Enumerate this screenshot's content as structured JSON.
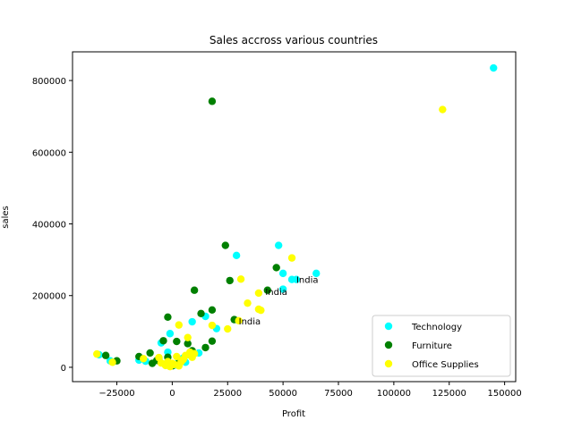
{
  "chart_data": {
    "type": "scatter",
    "title": "Sales accross various countries",
    "xlabel": "Profit",
    "ylabel": "sales",
    "xlim": [
      -45000,
      155000
    ],
    "ylim": [
      -40000,
      880000
    ],
    "xticks": [
      -25000,
      0,
      25000,
      50000,
      75000,
      100000,
      125000,
      150000
    ],
    "xtick_labels": [
      "−25000",
      "0",
      "25000",
      "50000",
      "75000",
      "100000",
      "125000",
      "150000"
    ],
    "yticks": [
      0,
      200000,
      400000,
      600000,
      800000
    ],
    "ytick_labels": [
      "0",
      "200000",
      "400000",
      "600000",
      "800000"
    ],
    "grid": false,
    "legend_position": "lower-right",
    "series": [
      {
        "name": "Technology",
        "color": "#00ffff",
        "points": [
          [
            145000,
            835000
          ],
          [
            48000,
            340000
          ],
          [
            29000,
            312000
          ],
          [
            50000,
            262000
          ],
          [
            54000,
            245000
          ],
          [
            65000,
            262000
          ],
          [
            50000,
            218000
          ],
          [
            56000,
            245000
          ],
          [
            20000,
            108000
          ],
          [
            9000,
            127000
          ],
          [
            15000,
            142000
          ],
          [
            -33000,
            35000
          ],
          [
            -28000,
            18000
          ],
          [
            -5000,
            68000
          ],
          [
            -1000,
            94000
          ],
          [
            -2000,
            42000
          ],
          [
            -6000,
            24000
          ],
          [
            -12000,
            17000
          ],
          [
            -15000,
            20000
          ],
          [
            3000,
            21000
          ],
          [
            5000,
            26000
          ],
          [
            8000,
            34000
          ],
          [
            12000,
            40000
          ],
          [
            -3000,
            9000
          ],
          [
            1000,
            6000
          ],
          [
            6000,
            14000
          ]
        ]
      },
      {
        "name": "Furniture",
        "color": "#008000",
        "points": [
          [
            18000,
            742000
          ],
          [
            24000,
            340000
          ],
          [
            47000,
            278000
          ],
          [
            26000,
            242000
          ],
          [
            10000,
            215000
          ],
          [
            43000,
            215000
          ],
          [
            18000,
            160000
          ],
          [
            13000,
            150000
          ],
          [
            28000,
            133000
          ],
          [
            -2000,
            140000
          ],
          [
            -4000,
            74000
          ],
          [
            -30000,
            33000
          ],
          [
            -25000,
            18000
          ],
          [
            -15000,
            30000
          ],
          [
            -10000,
            40000
          ],
          [
            -7000,
            19000
          ],
          [
            -9000,
            11000
          ],
          [
            2000,
            72000
          ],
          [
            7000,
            66000
          ],
          [
            15000,
            55000
          ],
          [
            18000,
            73000
          ],
          [
            -2000,
            28000
          ],
          [
            0,
            4000
          ],
          [
            3000,
            12000
          ],
          [
            9000,
            46000
          ]
        ]
      },
      {
        "name": "Office Supplies",
        "color": "#ffff00",
        "points": [
          [
            122000,
            719000
          ],
          [
            54000,
            305000
          ],
          [
            31000,
            246000
          ],
          [
            39000,
            207000
          ],
          [
            34000,
            179000
          ],
          [
            39000,
            162000
          ],
          [
            40000,
            159000
          ],
          [
            30000,
            130000
          ],
          [
            18000,
            117000
          ],
          [
            25000,
            107000
          ],
          [
            3000,
            118000
          ],
          [
            7000,
            83000
          ],
          [
            -34000,
            37000
          ],
          [
            -27000,
            14000
          ],
          [
            -13000,
            24000
          ],
          [
            -6000,
            27000
          ],
          [
            -5000,
            12000
          ],
          [
            -2000,
            16000
          ],
          [
            -1000,
            2000
          ],
          [
            1000,
            8000
          ],
          [
            2000,
            30000
          ],
          [
            4000,
            15000
          ],
          [
            6000,
            33000
          ],
          [
            8000,
            42000
          ],
          [
            10000,
            38000
          ],
          [
            3000,
            4000
          ],
          [
            -3000,
            5000
          ],
          [
            0,
            11000
          ],
          [
            5000,
            22000
          ],
          [
            9000,
            28000
          ]
        ]
      }
    ],
    "annotations": [
      {
        "text": "India",
        "x": 56000,
        "y": 245000
      },
      {
        "text": "India",
        "x": 42000,
        "y": 212000
      },
      {
        "text": "India",
        "x": 30000,
        "y": 130000
      }
    ]
  }
}
